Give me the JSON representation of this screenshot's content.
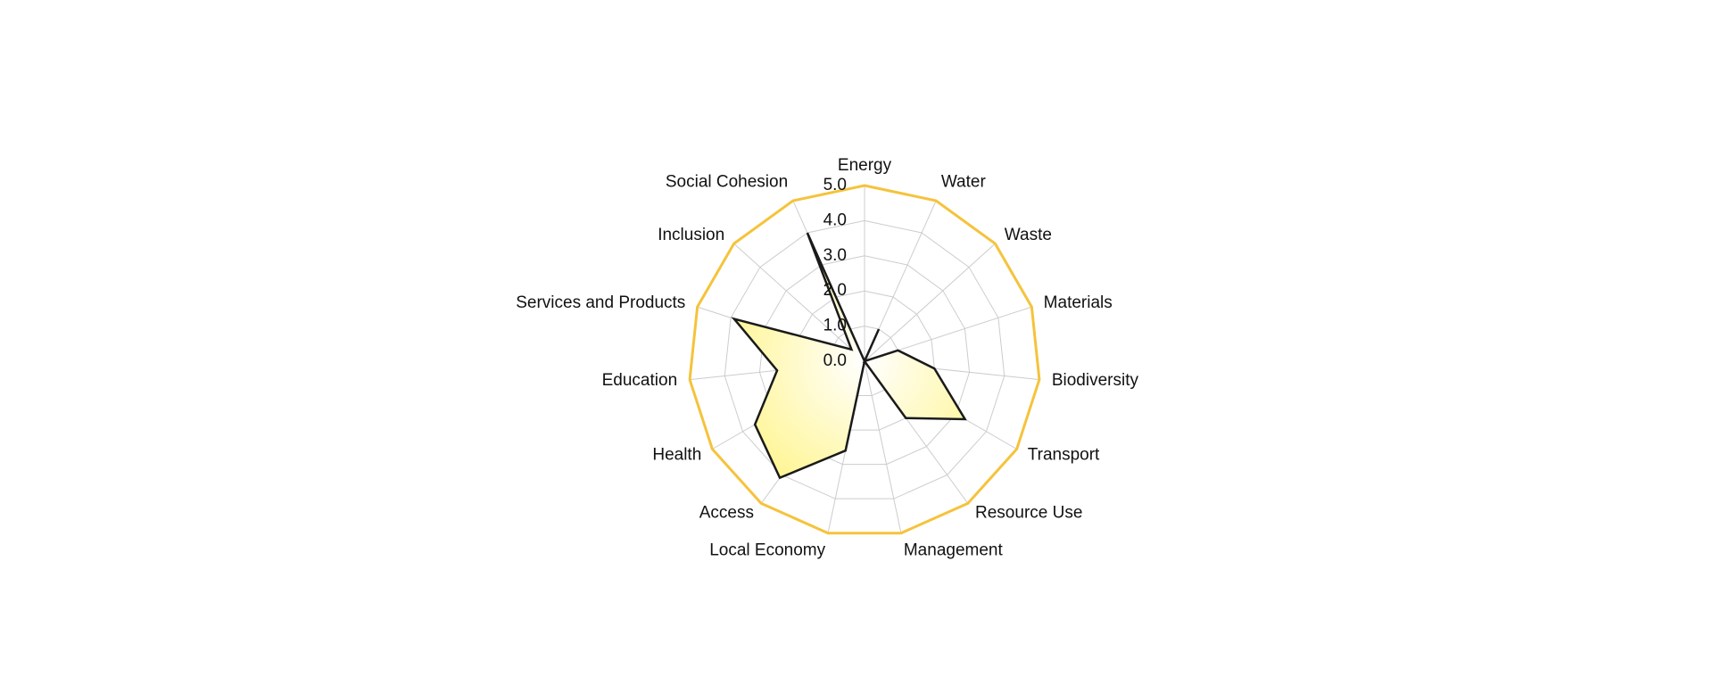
{
  "chart_data": {
    "type": "radar",
    "categories": [
      "Energy",
      "Water",
      "Waste",
      "Materials",
      "Biodiversity",
      "Transport",
      "Resource Use",
      "Management",
      "Local Economy",
      "Access",
      "Health",
      "Education",
      "Services and Products",
      "Inclusion",
      "Social Cohesion"
    ],
    "values": [
      0,
      1.0,
      0,
      1.0,
      2.0,
      3.3,
      2.0,
      0,
      2.6,
      4.1,
      3.6,
      2.5,
      3.9,
      0.5,
      4.0
    ],
    "color": "#fff37a",
    "line_color": "#1a1a1a",
    "frame_color": "#f5c33b",
    "grid_color": "#cccccc",
    "ylim": [
      0,
      5
    ],
    "yticks": [
      {
        "value": 0,
        "label": "0.0"
      },
      {
        "value": 1,
        "label": "1.0"
      },
      {
        "value": 2,
        "label": "2.0"
      },
      {
        "value": 3,
        "label": "3.0"
      },
      {
        "value": 4,
        "label": "4.0"
      },
      {
        "value": 5,
        "label": "5.0"
      }
    ],
    "grid": true
  }
}
